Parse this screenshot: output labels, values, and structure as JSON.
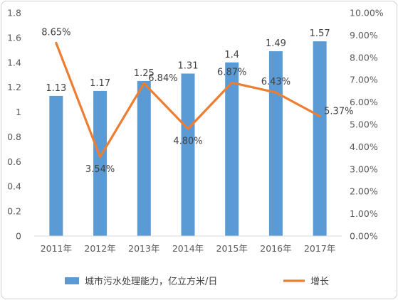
{
  "chart_data": {
    "type": "bar+line",
    "categories": [
      "2011年",
      "2012年",
      "2013年",
      "2014年",
      "2015年",
      "2016年",
      "2017年"
    ],
    "series": [
      {
        "name": "城市污水处理能力，亿立方米/日",
        "type": "bar",
        "axis": "left",
        "color": "#5b9bd5",
        "values": [
          1.13,
          1.17,
          1.25,
          1.31,
          1.4,
          1.49,
          1.57
        ],
        "labels": [
          "1.13",
          "1.17",
          "1.25",
          "1.31",
          "1.4",
          "1.49",
          "1.57"
        ]
      },
      {
        "name": "增长",
        "type": "line",
        "axis": "right",
        "color": "#ed7d31",
        "values": [
          8.65,
          3.54,
          6.84,
          4.8,
          6.87,
          6.43,
          5.37
        ],
        "labels": [
          "8.65%",
          "3.54%",
          "6.84%",
          "4.80%",
          "6.87%",
          "6.43%",
          "5.37%"
        ]
      }
    ],
    "y_left": {
      "range": [
        0,
        1.8
      ],
      "ticks": [
        "0",
        "0.2",
        "0.4",
        "0.6",
        "0.8",
        "1",
        "1.2",
        "1.4",
        "1.6",
        "1.8"
      ]
    },
    "y_right": {
      "range": [
        0,
        10
      ],
      "unit": "%",
      "ticks": [
        "0.00%",
        "1.00%",
        "2.00%",
        "3.00%",
        "4.00%",
        "5.00%",
        "6.00%",
        "7.00%",
        "8.00%",
        "9.00%",
        "10.00%"
      ]
    },
    "grid": false,
    "legend_position": "bottom"
  }
}
